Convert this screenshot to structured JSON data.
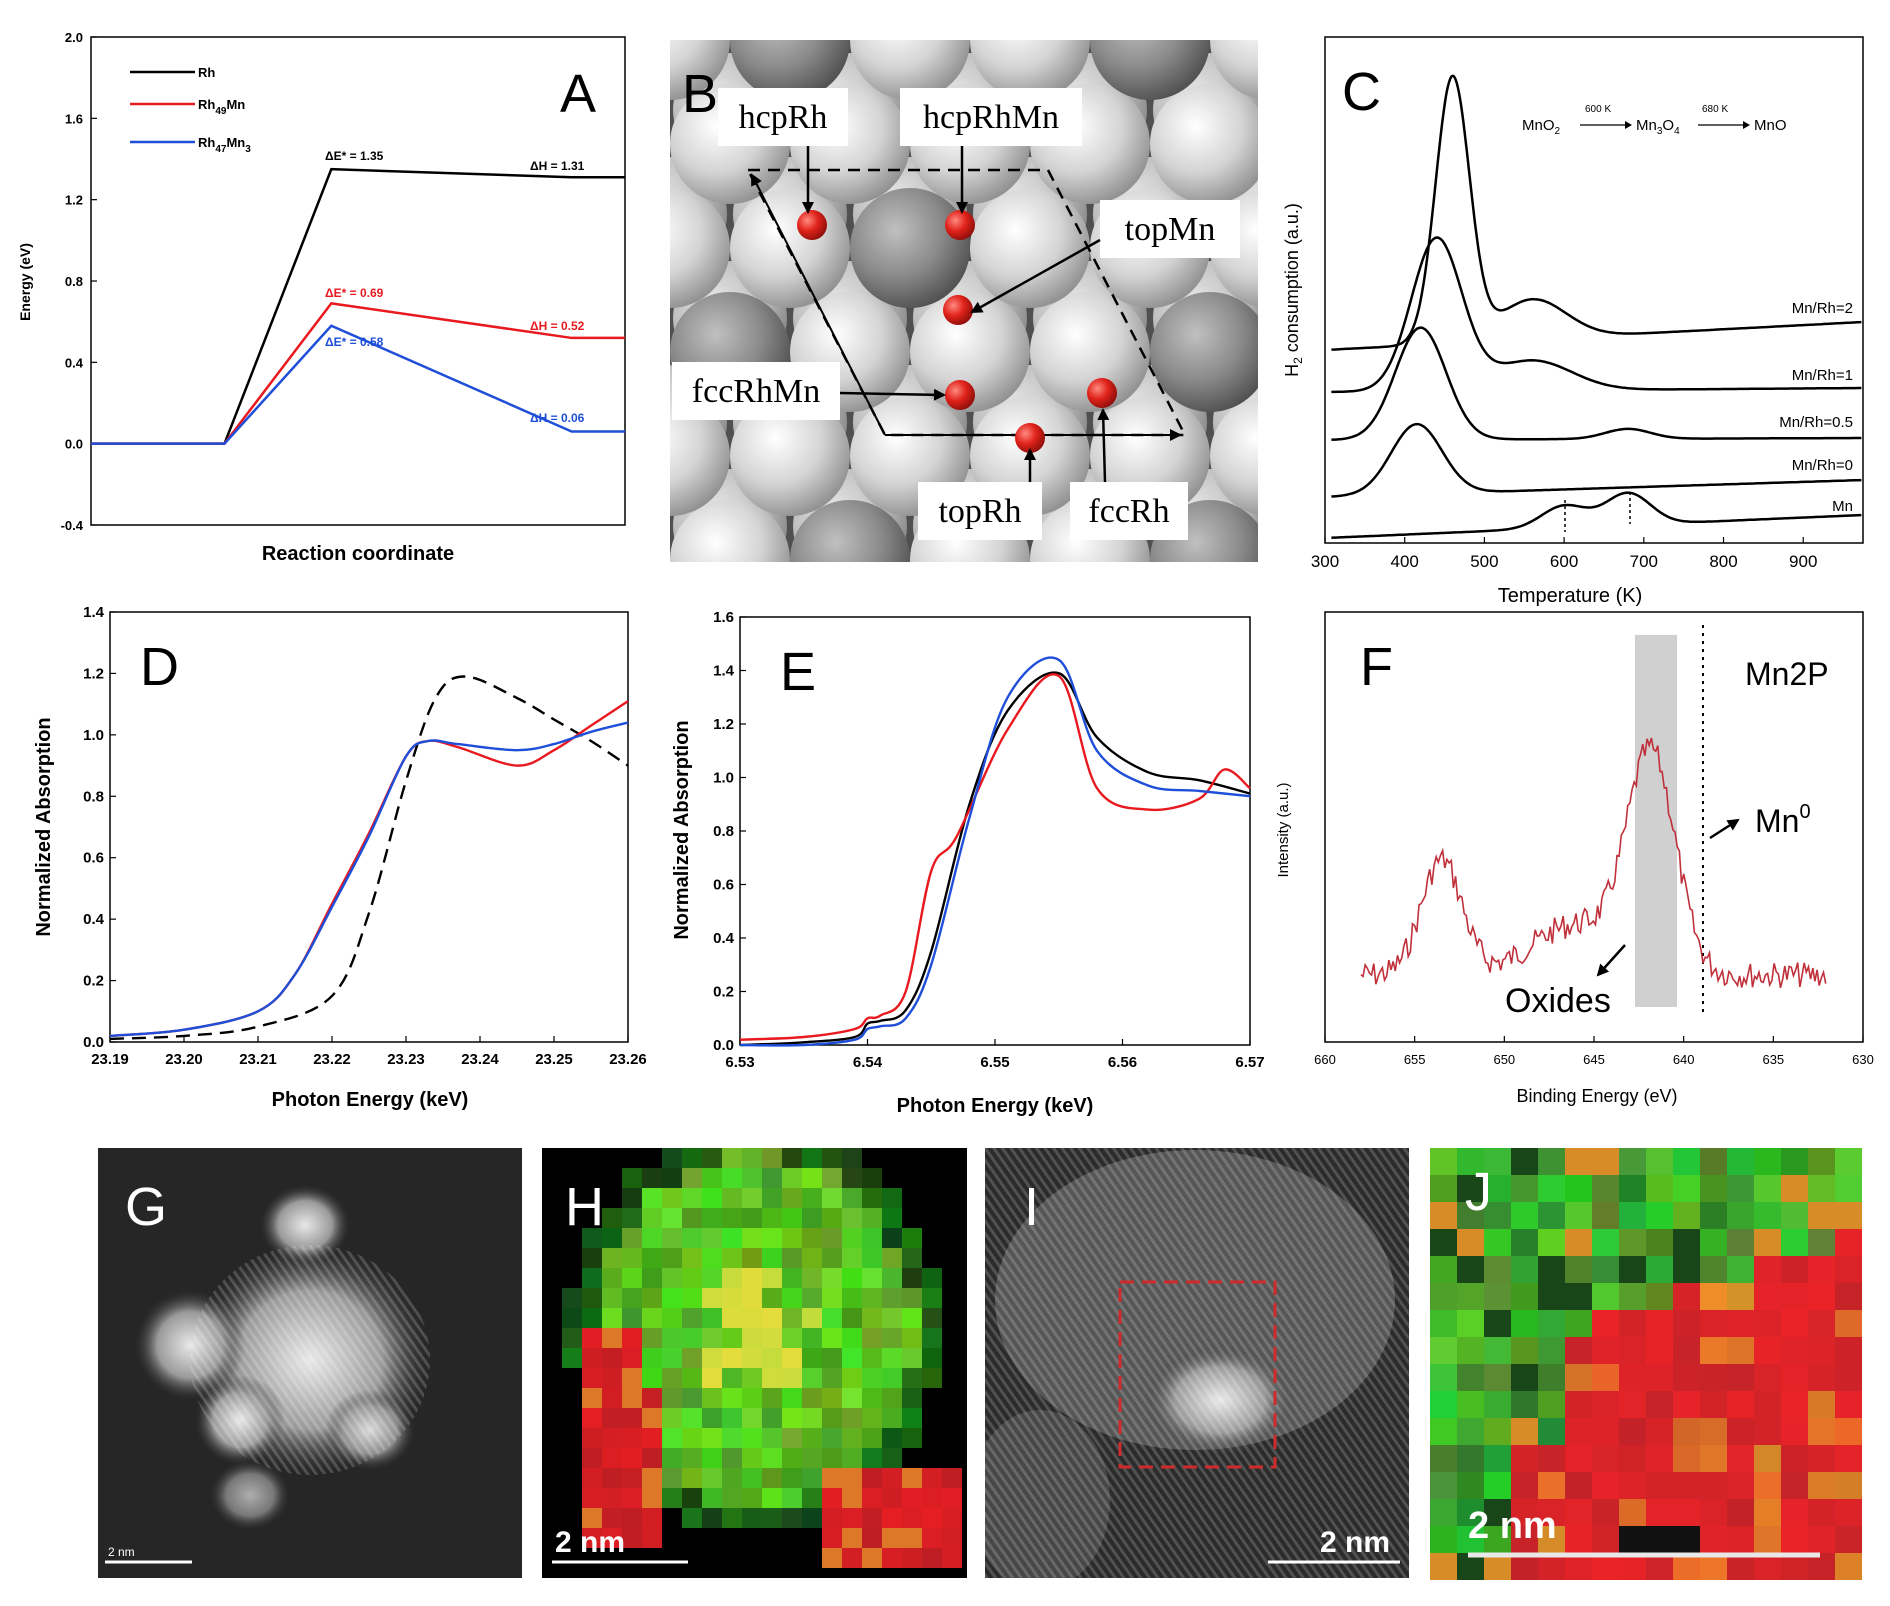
{
  "panels": {
    "A": {
      "letter": "A",
      "xlabel": "Reaction coordinate",
      "ylabel": "Energy (eV)",
      "yticks": [
        "-0.4",
        "0.0",
        "0.4",
        "0.8",
        "1.2",
        "1.6",
        "2.0"
      ],
      "legend": [
        {
          "label": "Rh",
          "color": "#000000"
        },
        {
          "label": "Rh49Mn",
          "color": "#e8191f"
        },
        {
          "label": "Rh47Mn3",
          "color": "#1f4fd8"
        }
      ],
      "annotations": {
        "rh_ts": "ΔE* = 1.35",
        "rh_h": "ΔH = 1.31",
        "rhmn_ts": "ΔE* = 0.69",
        "rhmn_h": "ΔH = 0.52",
        "rh3_ts": "ΔE* = 0.58",
        "rh3_h": "ΔH = 0.06"
      }
    },
    "B": {
      "letter": "B",
      "labels": {
        "hcpRh": "hcpRh",
        "hcpRhMn": "hcpRhMn",
        "topMn": "topMn",
        "fccRhMn": "fccRhMn",
        "topRh": "topRh",
        "fccRh": "fccRh"
      }
    },
    "C": {
      "letter": "C",
      "xlabel": "Temperature (K)",
      "ylabel": "H2 consumption (a.u.)",
      "xticks": [
        "300",
        "400",
        "500",
        "600",
        "700",
        "800",
        "900"
      ],
      "reaction": {
        "a": "MnO2",
        "t1": "600 K",
        "b": "Mn3O4",
        "t2": "680 K",
        "c": "MnO"
      },
      "curve_labels": [
        "Mn/Rh=2",
        "Mn/Rh=1",
        "Mn/Rh=0.5",
        "Mn/Rh=0",
        "Mn"
      ]
    },
    "D": {
      "letter": "D",
      "xlabel": "Photon Energy (keV)",
      "ylabel": "Normalized Absorption",
      "xticks": [
        "23.19",
        "23.20",
        "23.21",
        "23.22",
        "23.23",
        "23.24",
        "23.25",
        "23.26"
      ],
      "yticks": [
        "0.0",
        "0.2",
        "0.4",
        "0.6",
        "0.8",
        "1.0",
        "1.2",
        "1.4"
      ]
    },
    "E": {
      "letter": "E",
      "xlabel": "Photon Energy (keV)",
      "ylabel": "Normalized Absorption",
      "xticks": [
        "6.53",
        "6.54",
        "6.55",
        "6.56",
        "6.57"
      ],
      "yticks": [
        "0.0",
        "0.2",
        "0.4",
        "0.6",
        "0.8",
        "1.0",
        "1.2",
        "1.4",
        "1.6"
      ]
    },
    "F": {
      "letter": "F",
      "xlabel": "Binding Energy (eV)",
      "ylabel": "Intensity (a.u.)",
      "xticks": [
        "660",
        "655",
        "650",
        "645",
        "640",
        "635",
        "630"
      ],
      "tag": "Mn2P",
      "mn0": "Mn0",
      "oxides": "Oxides"
    },
    "G": {
      "letter": "G",
      "scale": "2 nm"
    },
    "H": {
      "letter": "H",
      "scale": "2 nm"
    },
    "I": {
      "letter": "I",
      "scale": "2 nm"
    },
    "J": {
      "letter": "J",
      "scale": "2 nm"
    }
  },
  "chart_data": [
    {
      "panel": "A",
      "type": "line",
      "xlabel": "Reaction coordinate",
      "ylabel": "Energy (eV)",
      "ylim": [
        -0.4,
        2.0
      ],
      "series": [
        {
          "name": "Rh",
          "color": "#000000",
          "points": [
            [
              0,
              0
            ],
            [
              0.25,
              0
            ],
            [
              0.45,
              1.35
            ],
            [
              0.9,
              1.31
            ],
            [
              1,
              1.31
            ]
          ]
        },
        {
          "name": "Rh49Mn",
          "color": "#e8191f",
          "points": [
            [
              0,
              0
            ],
            [
              0.25,
              0
            ],
            [
              0.45,
              0.69
            ],
            [
              0.9,
              0.52
            ],
            [
              1,
              0.52
            ]
          ]
        },
        {
          "name": "Rh47Mn3",
          "color": "#1f4fd8",
          "points": [
            [
              0,
              0
            ],
            [
              0.25,
              0
            ],
            [
              0.45,
              0.58
            ],
            [
              0.9,
              0.06
            ],
            [
              1,
              0.06
            ]
          ]
        }
      ]
    },
    {
      "panel": "C",
      "type": "line",
      "xlabel": "Temperature (K)",
      "ylabel": "H2 consumption (a.u.)",
      "xlim": [
        300,
        975
      ],
      "series": [
        {
          "name": "Mn/Rh=2",
          "peak_T": 460
        },
        {
          "name": "Mn/Rh=1",
          "peak_T": 440
        },
        {
          "name": "Mn/Rh=0.5",
          "peak_T": 420
        },
        {
          "name": "Mn/Rh=0",
          "peak_T": 415
        },
        {
          "name": "Mn",
          "peak_T": [
            600,
            680
          ]
        }
      ]
    },
    {
      "panel": "D",
      "type": "line",
      "xlabel": "Photon Energy (keV)",
      "ylabel": "Normalized Absorption",
      "xlim": [
        23.19,
        23.26
      ],
      "ylim": [
        0.0,
        1.4
      ],
      "series": [
        {
          "color": "#000000",
          "style": "dashed",
          "x": [
            23.19,
            23.2,
            23.21,
            23.22,
            23.225,
            23.23,
            23.234,
            23.238,
            23.245,
            23.25,
            23.255,
            23.26
          ],
          "y": [
            0.01,
            0.02,
            0.05,
            0.15,
            0.42,
            0.85,
            1.12,
            1.19,
            1.12,
            1.05,
            0.98,
            0.9
          ]
        },
        {
          "color": "#e8191f",
          "x": [
            23.19,
            23.2,
            23.21,
            23.215,
            23.22,
            23.225,
            23.23,
            23.233,
            23.237,
            23.245,
            23.25,
            23.255,
            23.26
          ],
          "y": [
            0.02,
            0.04,
            0.1,
            0.22,
            0.45,
            0.68,
            0.93,
            0.98,
            0.96,
            0.9,
            0.95,
            1.03,
            1.11
          ]
        },
        {
          "color": "#1f4fd8",
          "x": [
            23.19,
            23.2,
            23.21,
            23.215,
            23.22,
            23.225,
            23.23,
            23.233,
            23.237,
            23.245,
            23.25,
            23.255,
            23.26
          ],
          "y": [
            0.02,
            0.04,
            0.1,
            0.22,
            0.44,
            0.67,
            0.93,
            0.98,
            0.97,
            0.95,
            0.97,
            1.01,
            1.04
          ]
        }
      ]
    },
    {
      "panel": "E",
      "type": "line",
      "xlabel": "Photon Energy (keV)",
      "ylabel": "Normalized Absorption",
      "xlim": [
        6.53,
        6.57
      ],
      "ylim": [
        0.0,
        1.6
      ],
      "series": [
        {
          "color": "#000000",
          "x": [
            6.53,
            6.535,
            6.539,
            6.54,
            6.541,
            6.543,
            6.545,
            6.548,
            6.551,
            6.555,
            6.558,
            6.562,
            6.566,
            6.57
          ],
          "y": [
            0.0,
            0.01,
            0.03,
            0.08,
            0.09,
            0.13,
            0.35,
            0.9,
            1.25,
            1.39,
            1.15,
            1.02,
            0.99,
            0.94
          ]
        },
        {
          "color": "#e8191f",
          "x": [
            6.53,
            6.535,
            6.539,
            6.54,
            6.541,
            6.543,
            6.545,
            6.547,
            6.551,
            6.555,
            6.558,
            6.562,
            6.566,
            6.568,
            6.57
          ],
          "y": [
            0.02,
            0.03,
            0.06,
            0.1,
            0.11,
            0.2,
            0.65,
            0.78,
            1.18,
            1.38,
            0.96,
            0.88,
            0.92,
            1.03,
            0.96
          ]
        },
        {
          "color": "#1f4fd8",
          "x": [
            6.53,
            6.535,
            6.539,
            6.54,
            6.541,
            6.543,
            6.545,
            6.548,
            6.551,
            6.555,
            6.558,
            6.562,
            6.566,
            6.57
          ],
          "y": [
            0.0,
            0.0,
            0.02,
            0.06,
            0.07,
            0.1,
            0.3,
            0.85,
            1.3,
            1.44,
            1.1,
            0.97,
            0.95,
            0.93
          ]
        }
      ]
    },
    {
      "panel": "F",
      "type": "line",
      "xlabel": "Binding Energy (eV)",
      "ylabel": "Intensity (a.u.)",
      "xlim": [
        660,
        630
      ],
      "series": [
        {
          "color": "#c0303a",
          "peaks_eV": [
            653.5,
            641.8
          ]
        }
      ]
    }
  ]
}
